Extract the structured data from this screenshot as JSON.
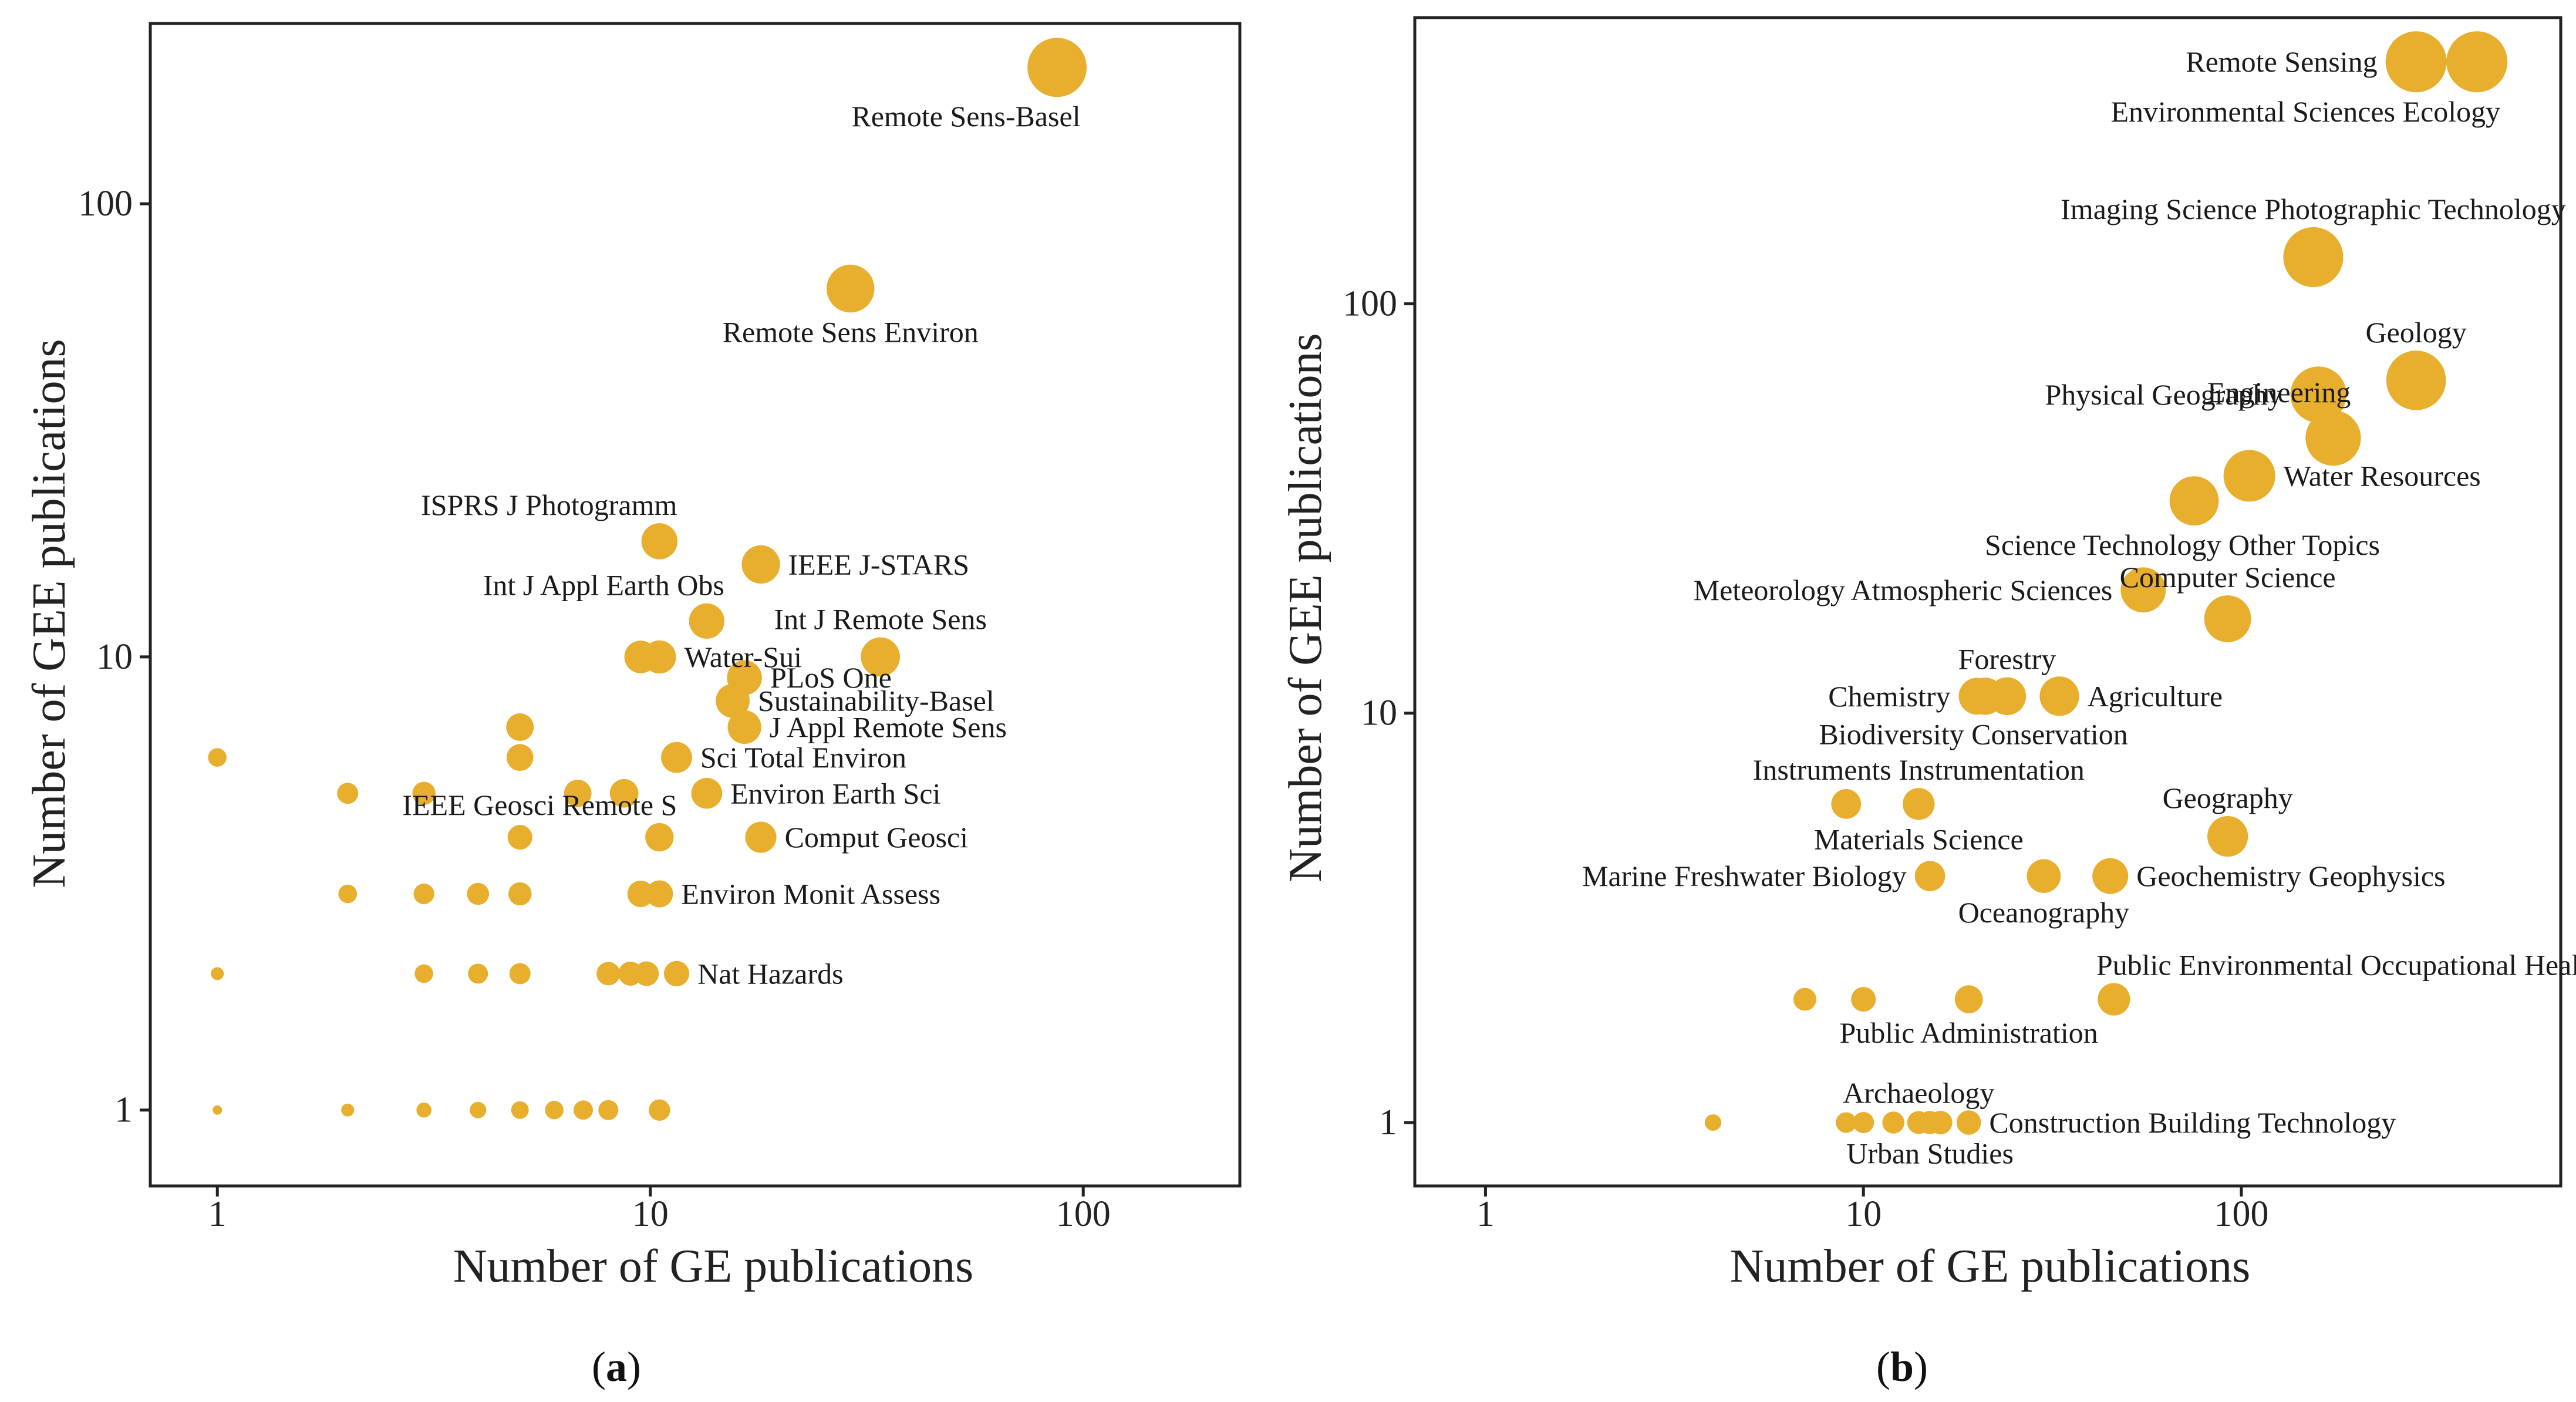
{
  "chart_data": [
    {
      "type": "scatter",
      "panel": "a",
      "caption": {
        "open": "(",
        "letter": "a",
        "close": ")"
      },
      "xlabel": "Number of GE publications",
      "ylabel": "Number of GEE publications",
      "xscale": "log",
      "yscale": "log",
      "xlim": [
        0.7,
        230
      ],
      "ylim": [
        0.68,
        250
      ],
      "xticks": [
        {
          "value": 1,
          "label": "1"
        },
        {
          "value": 10,
          "label": "10"
        },
        {
          "value": 100,
          "label": "100"
        }
      ],
      "yticks": [
        {
          "value": 1,
          "label": "1"
        },
        {
          "value": 10,
          "label": "10"
        },
        {
          "value": 100,
          "label": "100"
        }
      ],
      "marker_color": "#E8AE2E",
      "points": [
        {
          "x": 87,
          "y": 200,
          "label": "Remote Sens-Basel",
          "label_pos": "below-left"
        },
        {
          "x": 29,
          "y": 65,
          "label": "Remote Sens Environ",
          "label_pos": "below"
        },
        {
          "x": 10.5,
          "y": 18,
          "label": "ISPRS J Photogramm",
          "label_pos": "above-left"
        },
        {
          "x": 18,
          "y": 16,
          "label": "IEEE J-STARS",
          "label_pos": "right"
        },
        {
          "x": 13.5,
          "y": 12,
          "label": "Int J Appl Earth Obs",
          "label_pos": "above-left"
        },
        {
          "x": 34,
          "y": 10,
          "label": "Int J Remote Sens",
          "label_pos": "above"
        },
        {
          "x": 9.5,
          "y": 10,
          "label": "",
          "label_pos": "none"
        },
        {
          "x": 10.5,
          "y": 10,
          "label": "Water-Sui",
          "label_pos": "right"
        },
        {
          "x": 16.5,
          "y": 9,
          "label": "PLoS One",
          "label_pos": "right"
        },
        {
          "x": 15.5,
          "y": 8,
          "label": "Sustainability-Basel",
          "label_pos": "right"
        },
        {
          "x": 16.5,
          "y": 7,
          "label": "J Appl Remote Sens",
          "label_pos": "right"
        },
        {
          "x": 11.5,
          "y": 6,
          "label": "Sci Total Environ",
          "label_pos": "right"
        },
        {
          "x": 13.5,
          "y": 5,
          "label": "Environ Earth Sci",
          "label_pos": "right"
        },
        {
          "x": 10.5,
          "y": 4,
          "label": "IEEE Geosci Remote S",
          "label_pos": "above-left"
        },
        {
          "x": 18,
          "y": 4,
          "label": "Comput Geosci",
          "label_pos": "right"
        },
        {
          "x": 9.5,
          "y": 3,
          "label": "",
          "label_pos": "none"
        },
        {
          "x": 10.5,
          "y": 3,
          "label": "Environ Monit Assess",
          "label_pos": "right"
        },
        {
          "x": 11.5,
          "y": 2,
          "label": "Nat Hazards",
          "label_pos": "right"
        },
        {
          "x": 10.5,
          "y": 1,
          "label": "",
          "label_pos": "none"
        },
        {
          "x": 1,
          "y": 6,
          "label": "",
          "label_pos": "none"
        },
        {
          "x": 2,
          "y": 5,
          "label": "",
          "label_pos": "none"
        },
        {
          "x": 3,
          "y": 5,
          "label": "",
          "label_pos": "none"
        },
        {
          "x": 5,
          "y": 7,
          "label": "",
          "label_pos": "none"
        },
        {
          "x": 5,
          "y": 6,
          "label": "",
          "label_pos": "none"
        },
        {
          "x": 5,
          "y": 4,
          "label": "",
          "label_pos": "none"
        },
        {
          "x": 6.8,
          "y": 5,
          "label": "",
          "label_pos": "none"
        },
        {
          "x": 8.7,
          "y": 5,
          "label": "",
          "label_pos": "none"
        },
        {
          "x": 2,
          "y": 3,
          "label": "",
          "label_pos": "none"
        },
        {
          "x": 3,
          "y": 3,
          "label": "",
          "label_pos": "none"
        },
        {
          "x": 4,
          "y": 3,
          "label": "",
          "label_pos": "none"
        },
        {
          "x": 5,
          "y": 3,
          "label": "",
          "label_pos": "none"
        },
        {
          "x": 1,
          "y": 2,
          "label": "",
          "label_pos": "none"
        },
        {
          "x": 3,
          "y": 2,
          "label": "",
          "label_pos": "none"
        },
        {
          "x": 4,
          "y": 2,
          "label": "",
          "label_pos": "none"
        },
        {
          "x": 5,
          "y": 2,
          "label": "",
          "label_pos": "none"
        },
        {
          "x": 8,
          "y": 2,
          "label": "",
          "label_pos": "none"
        },
        {
          "x": 9,
          "y": 2,
          "label": "",
          "label_pos": "none"
        },
        {
          "x": 9.8,
          "y": 2,
          "label": "",
          "label_pos": "none"
        },
        {
          "x": 1,
          "y": 1,
          "label": "",
          "label_pos": "none"
        },
        {
          "x": 2,
          "y": 1,
          "label": "",
          "label_pos": "none"
        },
        {
          "x": 3,
          "y": 1,
          "label": "",
          "label_pos": "none"
        },
        {
          "x": 4,
          "y": 1,
          "label": "",
          "label_pos": "none"
        },
        {
          "x": 5,
          "y": 1,
          "label": "",
          "label_pos": "none"
        },
        {
          "x": 6,
          "y": 1,
          "label": "",
          "label_pos": "none"
        },
        {
          "x": 7,
          "y": 1,
          "label": "",
          "label_pos": "none"
        },
        {
          "x": 8,
          "y": 1,
          "label": "",
          "label_pos": "none"
        }
      ]
    },
    {
      "type": "scatter",
      "panel": "b",
      "caption": {
        "open": "(",
        "letter": "b",
        "close": ")"
      },
      "xlabel": "Number of GE publications",
      "ylabel": "Number of GEE publications",
      "xscale": "log",
      "yscale": "log",
      "xlim": [
        0.65,
        700
      ],
      "ylim": [
        0.7,
        500
      ],
      "xticks": [
        {
          "value": 1,
          "label": "1"
        },
        {
          "value": 10,
          "label": "10"
        },
        {
          "value": 100,
          "label": "100"
        }
      ],
      "yticks": [
        {
          "value": 1,
          "label": "1"
        },
        {
          "value": 10,
          "label": "10"
        },
        {
          "value": 100,
          "label": "100"
        }
      ],
      "marker_color": "#E8AE2E",
      "points": [
        {
          "x": 290,
          "y": 390,
          "label": "Remote Sensing",
          "label_pos": "left"
        },
        {
          "x": 420,
          "y": 390,
          "label": "Environmental Sciences Ecology",
          "label_pos": "below-left"
        },
        {
          "x": 155,
          "y": 130,
          "label": "Imaging Science Photographic Technology",
          "label_pos": "above"
        },
        {
          "x": 290,
          "y": 65,
          "label": "Geology",
          "label_pos": "above"
        },
        {
          "x": 160,
          "y": 60,
          "label": "Physical Geography",
          "label_pos": "left"
        },
        {
          "x": 175,
          "y": 47,
          "label": "Engineering",
          "label_pos": "above-left"
        },
        {
          "x": 105,
          "y": 38,
          "label": "Water Resources",
          "label_pos": "right"
        },
        {
          "x": 75,
          "y": 33,
          "label": "Science Technology Other Topics",
          "label_pos": "below-right"
        },
        {
          "x": 55,
          "y": 20,
          "label": "Meteorology Atmospheric Sciences",
          "label_pos": "left"
        },
        {
          "x": 92,
          "y": 17,
          "label": "Computer Science",
          "label_pos": "above"
        },
        {
          "x": 20,
          "y": 11,
          "label": "Chemistry",
          "label_pos": "left"
        },
        {
          "x": 24,
          "y": 11,
          "label": "Forestry",
          "label_pos": "above"
        },
        {
          "x": 33,
          "y": 11,
          "label": "Agriculture",
          "label_pos": "right"
        },
        {
          "x": 21,
          "y": 11,
          "label": "Biodiversity Conservation",
          "label_pos": "below-right"
        },
        {
          "x": 9,
          "y": 6,
          "label": "",
          "label_pos": "none"
        },
        {
          "x": 14,
          "y": 6,
          "label": "Instruments Instrumentation",
          "label_pos": "above"
        },
        {
          "x": 92,
          "y": 5,
          "label": "Geography",
          "label_pos": "above"
        },
        {
          "x": 15,
          "y": 4,
          "label": "Marine Freshwater Biology",
          "label_pos": "left"
        },
        {
          "x": 30,
          "y": 4,
          "label": "Oceanography",
          "label_pos": "below"
        },
        {
          "x": 45,
          "y": 4,
          "label": "Geochemistry Geophysics",
          "label_pos": "right"
        },
        {
          "x": 7,
          "y": 2,
          "label": "",
          "label_pos": "none"
        },
        {
          "x": 10,
          "y": 2,
          "label": "",
          "label_pos": "none"
        },
        {
          "x": 19,
          "y": 2,
          "label": "Public Administration",
          "label_pos": "below"
        },
        {
          "x": 46,
          "y": 2,
          "label": "Public Environmental Occupational Health",
          "label_pos": "above-right"
        },
        {
          "x": 4,
          "y": 1,
          "label": "",
          "label_pos": "none"
        },
        {
          "x": 9,
          "y": 1,
          "label": "",
          "label_pos": "none"
        },
        {
          "x": 10,
          "y": 1,
          "label": "",
          "label_pos": "none"
        },
        {
          "x": 12,
          "y": 1,
          "label": "",
          "label_pos": "none"
        },
        {
          "x": 14,
          "y": 1,
          "label": "",
          "label_pos": "none"
        },
        {
          "x": 15,
          "y": 1,
          "label": "",
          "label_pos": "none"
        },
        {
          "x": 16,
          "y": 1,
          "label": "",
          "label_pos": "none"
        },
        {
          "x": 19,
          "y": 1,
          "label": "Construction Building Technology",
          "label_pos": "right"
        }
      ],
      "extra_labels": [
        {
          "text": "Materials Science",
          "anchor_point": 15,
          "pos": "below"
        },
        {
          "text": "Archaeology",
          "anchor_point": 28,
          "pos": "above"
        },
        {
          "text": "Urban Studies",
          "anchor_point": 29,
          "pos": "below"
        }
      ]
    }
  ]
}
